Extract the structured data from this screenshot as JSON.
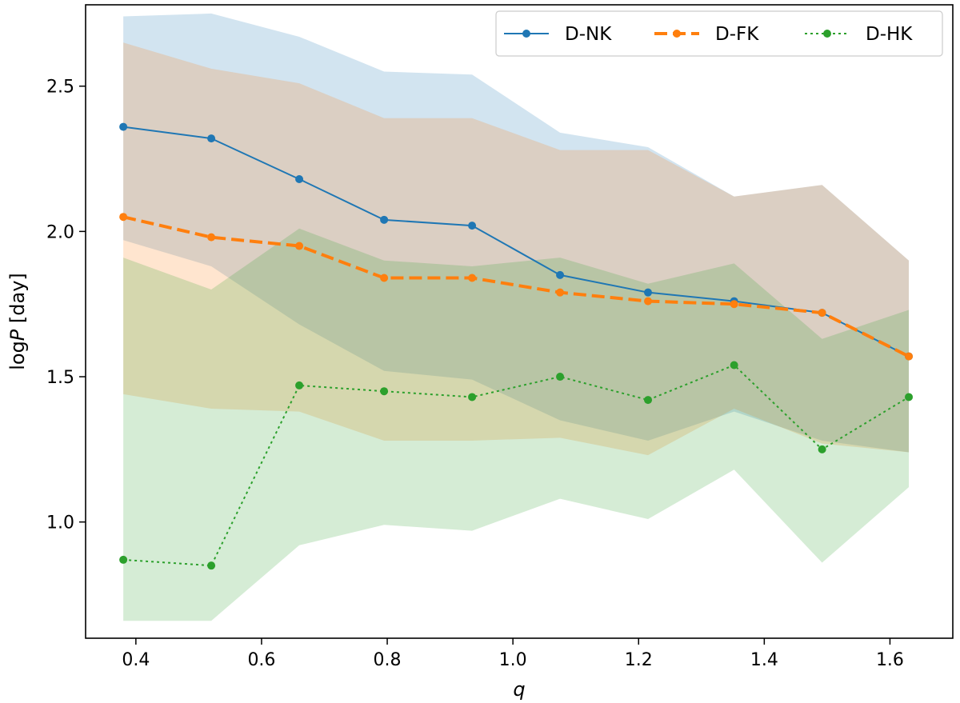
{
  "chart_data": {
    "type": "line",
    "title": "",
    "xlabel": "q",
    "ylabel_prefix": "log",
    "ylabel_var": "P",
    "ylabel_unit": " [day]",
    "xlim": [
      0.32,
      1.7
    ],
    "ylim": [
      0.6,
      2.78
    ],
    "x_ticks": [
      0.4,
      0.6,
      0.8,
      1.0,
      1.2,
      1.4,
      1.6
    ],
    "x_tick_labels": [
      "0.4",
      "0.6",
      "0.8",
      "1.0",
      "1.2",
      "1.4",
      "1.6"
    ],
    "y_ticks": [
      1.0,
      1.5,
      2.0,
      2.5
    ],
    "y_tick_labels": [
      "1.0",
      "1.5",
      "2.0",
      "2.5"
    ],
    "grid": false,
    "legend_position": "top-right",
    "x": [
      0.38,
      0.52,
      0.66,
      0.795,
      0.935,
      1.075,
      1.215,
      1.352,
      1.492,
      1.63
    ],
    "series": [
      {
        "name": "D-NK",
        "color": "#1f77b4",
        "band_color": "#1f77b4",
        "linestyle": "solid",
        "values": [
          2.36,
          2.32,
          2.18,
          2.04,
          2.02,
          1.85,
          1.79,
          1.76,
          1.72,
          1.57
        ],
        "band_upper": [
          2.74,
          2.75,
          2.67,
          2.55,
          2.54,
          2.34,
          2.29,
          2.12,
          2.16,
          1.9
        ],
        "band_lower": [
          1.97,
          1.88,
          1.68,
          1.52,
          1.49,
          1.35,
          1.28,
          1.38,
          1.28,
          1.24
        ]
      },
      {
        "name": "D-FK",
        "color": "#ff7f0e",
        "band_color": "#ff7f0e",
        "linestyle": "dashed",
        "values": [
          2.05,
          1.98,
          1.95,
          1.84,
          1.84,
          1.79,
          1.76,
          1.75,
          1.72,
          1.57
        ],
        "band_upper": [
          2.65,
          2.56,
          2.51,
          2.39,
          2.39,
          2.28,
          2.28,
          2.12,
          2.16,
          1.9
        ],
        "band_lower": [
          1.44,
          1.39,
          1.38,
          1.28,
          1.28,
          1.29,
          1.23,
          1.39,
          1.27,
          1.24
        ]
      },
      {
        "name": "D-HK",
        "color": "#2ca02c",
        "band_color": "#2ca02c",
        "linestyle": "dotted",
        "values": [
          0.87,
          0.85,
          1.47,
          1.45,
          1.43,
          1.5,
          1.42,
          1.54,
          1.25,
          1.43
        ],
        "band_upper": [
          1.91,
          1.8,
          2.01,
          1.9,
          1.88,
          1.91,
          1.82,
          1.89,
          1.63,
          1.73
        ],
        "band_lower": [
          0.66,
          0.66,
          0.92,
          0.99,
          0.97,
          1.08,
          1.01,
          1.18,
          0.86,
          1.12
        ]
      }
    ]
  }
}
